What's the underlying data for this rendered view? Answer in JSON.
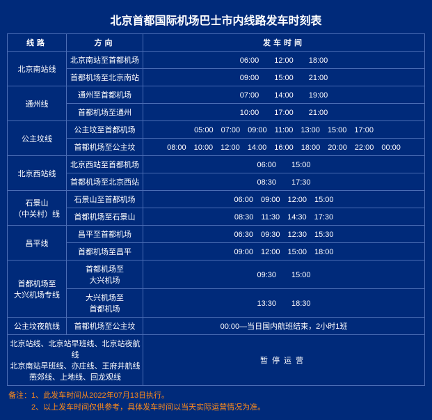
{
  "title": "北京首都国际机场巴士市内线路发车时刻表",
  "headers": {
    "route": "线路",
    "direction": "方向",
    "time": "发车时间"
  },
  "routes": [
    {
      "name": "北京南站线",
      "dirs": [
        {
          "dir": "北京南站至首都机场",
          "times": "06:00　　12:00　　18:00"
        },
        {
          "dir": "首都机场至北京南站",
          "times": "09:00　　15:00　　21:00"
        }
      ]
    },
    {
      "name": "通州线",
      "dirs": [
        {
          "dir": "通州至首都机场",
          "times": "07:00　　14:00　　19:00"
        },
        {
          "dir": "首都机场至通州",
          "times": "10:00　　17:00　　21:00"
        }
      ]
    },
    {
      "name": "公主坟线",
      "dirs": [
        {
          "dir": "公主坟至首都机场",
          "times": "05:00　07:00　09:00　11:00　13:00　15:00　17:00"
        },
        {
          "dir": "首都机场至公主坟",
          "times": "08:00　10:00　12:00　14:00　16:00　18:00　20:00　22:00　00:00"
        }
      ]
    },
    {
      "name": "北京西站线",
      "dirs": [
        {
          "dir": "北京西站至首都机场",
          "times": "06:00　　15:00"
        },
        {
          "dir": "首都机场至北京西站",
          "times": "08:30　　17:30"
        }
      ]
    },
    {
      "name": "石景山\n（中关村）线",
      "dirs": [
        {
          "dir": "石景山至首都机场",
          "times": "06:00　09:00　12:00　15:00"
        },
        {
          "dir": "首都机场至石景山",
          "times": "08:30　11:30　14:30　17:30"
        }
      ]
    },
    {
      "name": "昌平线",
      "dirs": [
        {
          "dir": "昌平至首都机场",
          "times": "06:30　09:30　12:30　15:30"
        },
        {
          "dir": "首都机场至昌平",
          "times": "09:00　12:00　15:00　18:00"
        }
      ]
    },
    {
      "name": "首都机场至\n大兴机场专线",
      "dirs": [
        {
          "dir": "首都机场至\n大兴机场",
          "times": "09:30　　15:00"
        },
        {
          "dir": "大兴机场至\n首都机场",
          "times": "13:30　　18:30"
        }
      ]
    }
  ],
  "night": {
    "name": "公主坟夜航线",
    "dir": "首都机场至公主坟",
    "times": "00:00—当日国内航班结束，2小时1班"
  },
  "suspended": {
    "routes": "北京站线、北京站早班线、北京站夜航线\n北京南站早班线、亦庄线、王府井航线\n燕郊线、上地线、回龙观线",
    "status": "暂停运营"
  },
  "footer": {
    "line1": "备注：1、此发车时间从2022年07月13日执行。",
    "line2": "　　　2、以上发车时间仅供参考，具体发车时间以当天实际运营情况为准。"
  }
}
